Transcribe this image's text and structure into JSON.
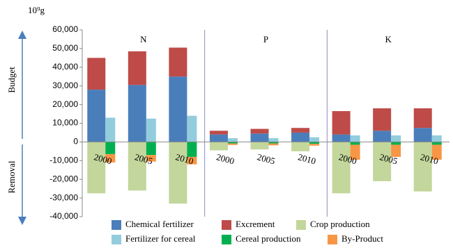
{
  "chart_data": {
    "type": "bar",
    "y_unit": "10⁹g",
    "upper_label": "Budget",
    "lower_label": "Removal",
    "groups": [
      "N",
      "P",
      "K"
    ],
    "categories": [
      "2000",
      "2005",
      "2010",
      "2000",
      "2005",
      "2010",
      "2000",
      "2005",
      "2010"
    ],
    "series": [
      {
        "name": "Chemical fertilizer",
        "color": "#4a7ebb",
        "values": [
          28000,
          30500,
          35000,
          4000,
          4500,
          5000,
          4000,
          6000,
          7500
        ]
      },
      {
        "name": "Excrement",
        "color": "#be4b48",
        "values": [
          17000,
          18000,
          15500,
          2000,
          2500,
          2500,
          12500,
          12000,
          10500
        ]
      },
      {
        "name": "Crop production",
        "color": "#c3d69b",
        "values": [
          -27500,
          -26000,
          -33000,
          -4500,
          -4000,
          -5000,
          -27500,
          -21000,
          -26500
        ]
      },
      {
        "name": "Fertilizer for cereal",
        "color": "#93cddd",
        "values": [
          13000,
          12500,
          14000,
          2000,
          2000,
          2500,
          3500,
          3500,
          3500
        ]
      },
      {
        "name": "Cereal production",
        "color": "#00b050",
        "values": [
          -6500,
          -7000,
          -8000,
          -800,
          -800,
          -1000,
          -1500,
          -1500,
          -1500
        ]
      },
      {
        "name": "By-Product",
        "color": "#f79646",
        "values": [
          -4500,
          -3500,
          -4000,
          -800,
          -1000,
          -1000,
          -8000,
          -6500,
          -8000
        ]
      }
    ],
    "ylim": [
      -40000,
      60000
    ],
    "yticks": [
      {
        "value": -40000,
        "label": "-40,000"
      },
      {
        "value": -30000,
        "label": "-30,000"
      },
      {
        "value": -20000,
        "label": "-20,000"
      },
      {
        "value": -10000,
        "label": "-10,000"
      },
      0,
      {
        "value": 10000,
        "label": "10,000"
      },
      {
        "value": 20000,
        "label": "20,000"
      },
      {
        "value": 30000,
        "label": "30,000"
      },
      {
        "value": 40000,
        "label": "40,000"
      },
      {
        "value": 50000,
        "label": "50,000"
      },
      {
        "value": 60000,
        "label": "60,000"
      }
    ]
  }
}
